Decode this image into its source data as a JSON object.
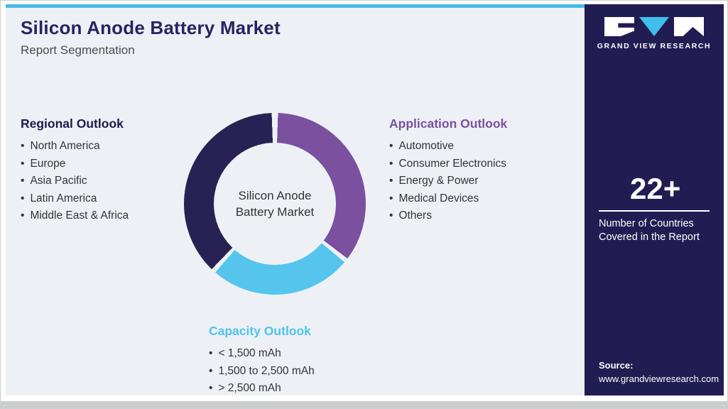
{
  "header": {
    "title": "Silicon Anode Battery Market",
    "subtitle": "Report Segmentation"
  },
  "donut": {
    "center_label": "Silicon Anode Battery Market",
    "gap_color": "#edf1f5",
    "segments": [
      {
        "name": "Application Outlook",
        "color": "#7b509f",
        "start_deg": 2,
        "end_deg": 127
      },
      {
        "name": "Capacity Outlook",
        "color": "#56c5ee",
        "start_deg": 130,
        "end_deg": 221
      },
      {
        "name": "Regional Outlook",
        "color": "#272253",
        "start_deg": 224,
        "end_deg": 358
      }
    ]
  },
  "sections": {
    "regional": {
      "title": "Regional Outlook",
      "color": "#1f1b4e",
      "items": [
        "North America",
        "Europe",
        "Asia Pacific",
        "Latin America",
        "Middle East & Africa"
      ]
    },
    "application": {
      "title": "Application Outlook",
      "color": "#7b509f",
      "items": [
        "Automotive",
        "Consumer Electronics",
        "Energy & Power",
        "Medical Devices",
        "Others"
      ]
    },
    "capacity": {
      "title": "Capacity Outlook",
      "color": "#4fc3ec",
      "items": [
        "< 1,500 mAh",
        "1,500 to 2,500 mAh",
        "> 2,500 mAh"
      ]
    }
  },
  "sidebar": {
    "brand": "GRAND VIEW RESEARCH",
    "brand_color": "#211d52",
    "accent_color": "#47b9e6",
    "countries_count": "22+",
    "countries_label": "Number of Countries Covered in the Report",
    "source_label": "Source:",
    "source_url": "www.grandviewresearch.com"
  }
}
